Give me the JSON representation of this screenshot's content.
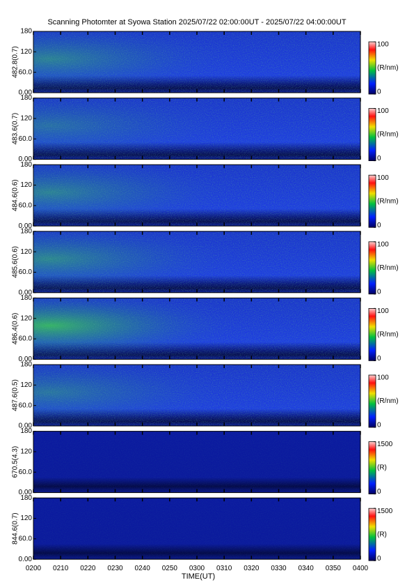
{
  "chart_data": [
    {
      "type": "heatmap",
      "title": "Scanning Photomter at Syowa Station 2025/07/22 02:00:00UT - 2025/07/22 04:00:00UT",
      "ylabel": "482.8(0.7)",
      "ylim": [
        0,
        180
      ],
      "yticks": [
        {
          "value": 0,
          "label": "0.00"
        },
        {
          "value": 60,
          "label": "60.0"
        },
        120,
        180
      ],
      "colorbar": {
        "lim": [
          0,
          100
        ],
        "ticks": [
          0,
          100
        ],
        "label": "(R/nm)"
      }
    },
    {
      "type": "heatmap",
      "ylabel": "483.6(0.7)",
      "ylim": [
        0,
        180
      ],
      "yticks": [
        {
          "value": 0,
          "label": "0.00"
        },
        {
          "value": 60,
          "label": "60.0"
        },
        120,
        180
      ],
      "colorbar": {
        "lim": [
          0,
          100
        ],
        "ticks": [
          0,
          100
        ],
        "label": "(R/nm)"
      }
    },
    {
      "type": "heatmap",
      "ylabel": "484.6(0.6)",
      "ylim": [
        0,
        180
      ],
      "yticks": [
        {
          "value": 0,
          "label": "0.00"
        },
        {
          "value": 60,
          "label": "60.0"
        },
        120,
        180
      ],
      "colorbar": {
        "lim": [
          0,
          100
        ],
        "ticks": [
          0,
          100
        ],
        "label": "(R/nm)"
      }
    },
    {
      "type": "heatmap",
      "ylabel": "485.6(0.6)",
      "ylim": [
        0,
        180
      ],
      "yticks": [
        {
          "value": 0,
          "label": "0.00"
        },
        {
          "value": 60,
          "label": "60.0"
        },
        120,
        180
      ],
      "colorbar": {
        "lim": [
          0,
          100
        ],
        "ticks": [
          0,
          100
        ],
        "label": "(R/nm)"
      }
    },
    {
      "type": "heatmap",
      "ylabel": "486.4(0.6)",
      "ylim": [
        0,
        180
      ],
      "yticks": [
        {
          "value": 0,
          "label": "0.00"
        },
        {
          "value": 60,
          "label": "60.0"
        },
        120,
        180
      ],
      "colorbar": {
        "lim": [
          0,
          100
        ],
        "ticks": [
          0,
          100
        ],
        "label": "(R/nm)"
      }
    },
    {
      "type": "heatmap",
      "ylabel": "487.6(0.5)",
      "ylim": [
        0,
        180
      ],
      "yticks": [
        {
          "value": 0,
          "label": "0.00"
        },
        {
          "value": 60,
          "label": "60.0"
        },
        120,
        180
      ],
      "colorbar": {
        "lim": [
          0,
          100
        ],
        "ticks": [
          0,
          100
        ],
        "label": "(R/nm)"
      }
    },
    {
      "type": "heatmap",
      "ylabel": "670.5(4.3)",
      "ylim": [
        0,
        180
      ],
      "yticks": [
        {
          "value": 0,
          "label": "0.00"
        },
        {
          "value": 60,
          "label": "60.0"
        },
        120,
        180
      ],
      "colorbar": {
        "lim": [
          0,
          1500
        ],
        "ticks": [
          0,
          1500
        ],
        "label": "(R)"
      }
    },
    {
      "type": "heatmap",
      "ylabel": "844.6(0.7)",
      "ylim": [
        0,
        180
      ],
      "yticks": [
        {
          "value": 0,
          "label": "0.00"
        },
        {
          "value": 60,
          "label": "60.0"
        },
        120,
        180
      ],
      "colorbar": {
        "lim": [
          0,
          1500
        ],
        "ticks": [
          0,
          1500
        ],
        "label": "(R)"
      },
      "xlabel": "TIME(UT)",
      "xlim": [
        120,
        240
      ],
      "xticks": [
        {
          "value": 120,
          "label": "0200"
        },
        {
          "value": 130,
          "label": "0210"
        },
        {
          "value": 140,
          "label": "0220"
        },
        {
          "value": 150,
          "label": "0230"
        },
        {
          "value": 160,
          "label": "0240"
        },
        {
          "value": 170,
          "label": "0250"
        },
        {
          "value": 180,
          "label": "0300"
        },
        {
          "value": 190,
          "label": "0310"
        },
        {
          "value": 200,
          "label": "0320"
        },
        {
          "value": 210,
          "label": "0330"
        },
        {
          "value": 220,
          "label": "0340"
        },
        {
          "value": 230,
          "label": "0350"
        },
        {
          "value": 240,
          "label": "0400"
        }
      ]
    }
  ]
}
